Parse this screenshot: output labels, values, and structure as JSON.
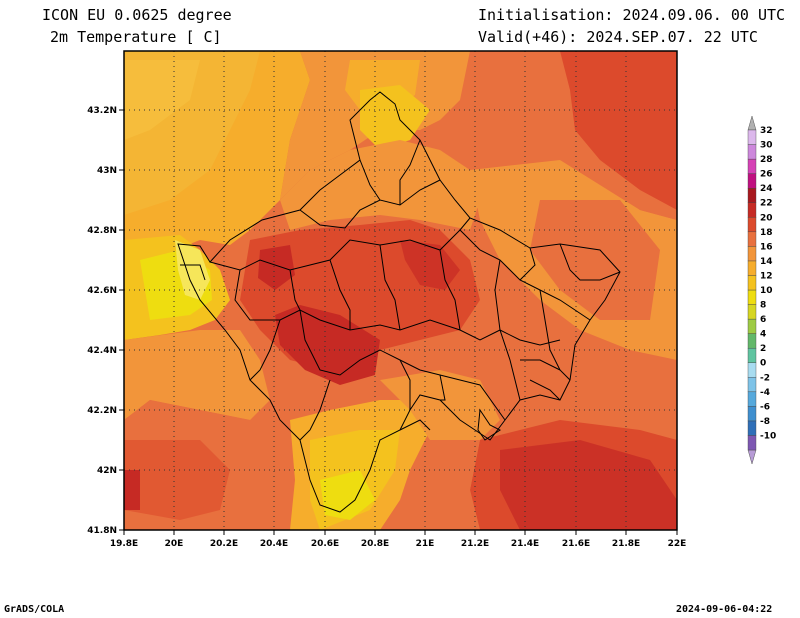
{
  "header": {
    "model": "ICON EU 0.0625 degree",
    "variable": "2m Temperature [ C]",
    "initialisation": "Initialisation: 2024.09.06. 00 UTC",
    "valid": "Valid(+46): 2024.SEP.07. 22 UTC"
  },
  "footer": {
    "left": "GrADS/COLA",
    "right": "2024-09-06-04:22"
  },
  "map": {
    "lon_range": [
      19.8,
      22.0
    ],
    "lat_range": [
      41.8,
      43.4
    ],
    "lon_ticks": [
      "19.8E",
      "20E",
      "20.2E",
      "20.4E",
      "20.6E",
      "20.8E",
      "21E",
      "21.2E",
      "21.4E",
      "21.6E",
      "21.8E",
      "22E"
    ],
    "lat_ticks": [
      "41.8N",
      "42N",
      "42.2N",
      "42.4N",
      "42.6N",
      "42.8N",
      "43N",
      "43.2N"
    ],
    "grid": "dotted"
  },
  "colorbar": {
    "levels": [
      "-10",
      "-8",
      "-6",
      "-4",
      "-2",
      "0",
      "2",
      "4",
      "6",
      "8",
      "10",
      "12",
      "14",
      "16",
      "18",
      "20",
      "22",
      "24",
      "26",
      "28",
      "30",
      "32"
    ],
    "colors": [
      "#7d57b2",
      "#2f6fb8",
      "#3f8fcf",
      "#56a9dc",
      "#7ec3e8",
      "#a8dcf0",
      "#5fc4a0",
      "#62b86a",
      "#9ecb44",
      "#d6d622",
      "#eedd10",
      "#f4c21e",
      "#f6ad2c",
      "#f2953a",
      "#e8703e",
      "#dc4a2c",
      "#c62a24",
      "#a8181e",
      "#c01080",
      "#d642b6",
      "#cd88dc",
      "#dcb8ec"
    ]
  }
}
